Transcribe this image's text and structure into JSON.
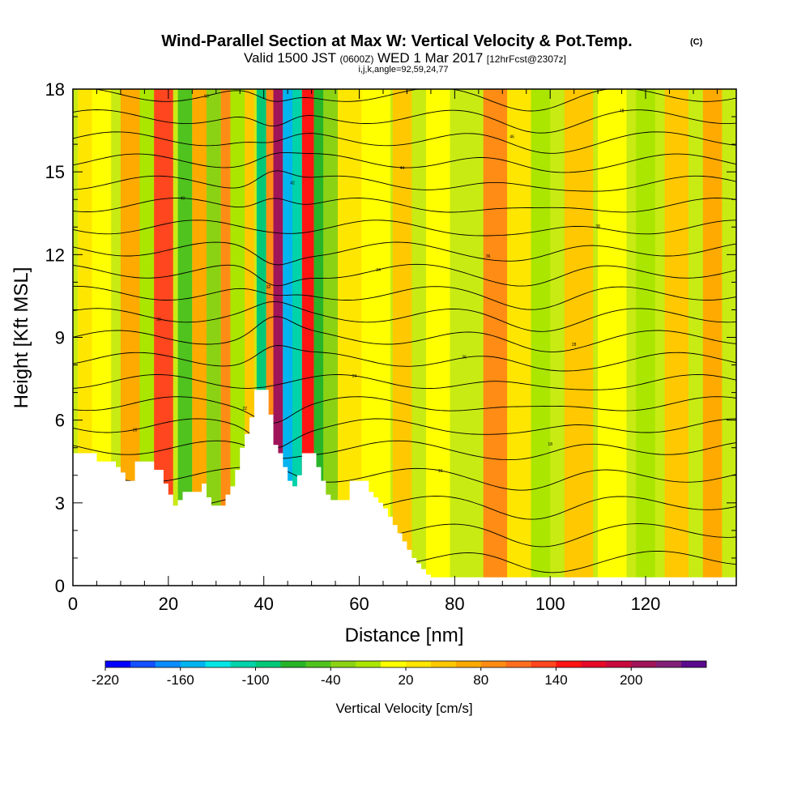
{
  "chart_data": {
    "type": "heatmap",
    "title": "Wind-Parallel Section at Max W: Vertical Velocity & Pot.Temp.",
    "copyright_mark": "(C)",
    "subtitle_main": "Valid 1500 JST",
    "subtitle_utc": "(0600Z)",
    "subtitle_date": "WED 1 Mar 2017",
    "subtitle_fcst": "[12hrFcst@2307z]",
    "subtitle_indices": "i,j,k,angle=92,59,24,77",
    "xlabel": "Distance [nm]",
    "ylabel": "Height [Kft MSL]",
    "xlim": [
      0,
      139
    ],
    "ylim": [
      0,
      18
    ],
    "x_ticks": [
      0,
      20,
      40,
      60,
      80,
      100,
      120
    ],
    "y_ticks": [
      0,
      3,
      6,
      9,
      12,
      15,
      18
    ],
    "colorbar": {
      "label": "Vertical Velocity [cm/s]",
      "levels": [
        -220,
        -200,
        -180,
        -160,
        -140,
        -120,
        -100,
        -80,
        -60,
        -40,
        -20,
        0,
        20,
        40,
        60,
        80,
        100,
        120,
        140,
        160,
        180,
        200,
        220,
        240
      ],
      "labeled_ticks": [
        -220,
        -160,
        -100,
        -40,
        20,
        80,
        140,
        200
      ],
      "colors": [
        "#0000ff",
        "#1450ff",
        "#0a8cff",
        "#00b4f0",
        "#00e6e6",
        "#00d2aa",
        "#00c878",
        "#28b428",
        "#50c31e",
        "#8cd214",
        "#aae600",
        "#ffff00",
        "#ffe600",
        "#ffc800",
        "#ffaa00",
        "#ff8c14",
        "#ff6e1e",
        "#ff461e",
        "#ff1414",
        "#e60a28",
        "#c80a3c",
        "#a0145a",
        "#821e78",
        "#5a0a8c"
      ]
    },
    "vertical_velocity_bands": [
      {
        "x": 1,
        "w": 6,
        "value": 20
      },
      {
        "x": 4,
        "w": 4,
        "value": 0
      },
      {
        "x": 10,
        "w": 4,
        "value": 60
      },
      {
        "x": 14,
        "w": 3,
        "value": -20
      },
      {
        "x": 17,
        "w": 4,
        "value": 120
      },
      {
        "x": 22,
        "w": 3,
        "value": -60
      },
      {
        "x": 25,
        "w": 3,
        "value": 60
      },
      {
        "x": 28,
        "w": 3,
        "value": -40
      },
      {
        "x": 31,
        "w": 2,
        "value": 80
      },
      {
        "x": 33,
        "w": 3,
        "value": -20
      },
      {
        "x": 36,
        "w": 2,
        "value": 40
      },
      {
        "x": 38.5,
        "w": 2,
        "value": -100
      },
      {
        "x": 40.5,
        "w": 1.5,
        "value": 80
      },
      {
        "x": 42,
        "w": 2,
        "value": 200
      },
      {
        "x": 44,
        "w": 2,
        "value": -160
      },
      {
        "x": 46,
        "w": 2,
        "value": -120
      },
      {
        "x": 48,
        "w": 2.5,
        "value": 140
      },
      {
        "x": 50.5,
        "w": 2,
        "value": -80
      },
      {
        "x": 52.5,
        "w": 3,
        "value": -40
      },
      {
        "x": 55.5,
        "w": 5,
        "value": 20
      },
      {
        "x": 60.5,
        "w": 6,
        "value": 0
      },
      {
        "x": 67,
        "w": 4,
        "value": 40
      },
      {
        "x": 74,
        "w": 5,
        "value": 0
      },
      {
        "x": 86,
        "w": 5,
        "value": 80
      },
      {
        "x": 91,
        "w": 5,
        "value": 20
      },
      {
        "x": 96,
        "w": 4,
        "value": -20
      },
      {
        "x": 103,
        "w": 6,
        "value": 40
      },
      {
        "x": 110,
        "w": 6,
        "value": 0
      },
      {
        "x": 118,
        "w": 4,
        "value": -20
      },
      {
        "x": 124,
        "w": 5,
        "value": 40
      },
      {
        "x": 132,
        "w": 4,
        "value": 60
      }
    ],
    "terrain_height": [
      [
        0,
        4.8
      ],
      [
        4,
        4.8
      ],
      [
        5,
        4.5
      ],
      [
        8,
        4.5
      ],
      [
        9,
        4.3
      ],
      [
        10,
        4.1
      ],
      [
        11,
        3.8
      ],
      [
        12,
        3.8
      ],
      [
        13,
        4.5
      ],
      [
        16,
        4.5
      ],
      [
        17,
        4.2
      ],
      [
        18,
        4.2
      ],
      [
        19,
        3.7
      ],
      [
        20,
        3.3
      ],
      [
        21,
        2.9
      ],
      [
        22,
        3.1
      ],
      [
        23,
        3.4
      ],
      [
        26,
        3.4
      ],
      [
        27,
        3.7
      ],
      [
        28,
        3.2
      ],
      [
        29,
        2.9
      ],
      [
        31,
        2.9
      ],
      [
        32,
        3.3
      ],
      [
        33,
        3.6
      ],
      [
        34,
        4.2
      ],
      [
        35,
        5.0
      ],
      [
        36,
        5.5
      ],
      [
        37,
        6.1
      ],
      [
        38,
        7.1
      ],
      [
        40,
        7.1
      ],
      [
        41,
        6.2
      ],
      [
        42,
        5.1
      ],
      [
        43,
        4.8
      ],
      [
        44,
        4.3
      ],
      [
        45,
        3.8
      ],
      [
        46,
        3.6
      ],
      [
        47,
        4.0
      ],
      [
        48,
        4.8
      ],
      [
        50,
        4.8
      ],
      [
        51,
        4.3
      ],
      [
        52,
        3.8
      ],
      [
        53,
        3.3
      ],
      [
        54,
        3.1
      ],
      [
        57,
        3.1
      ],
      [
        58,
        3.8
      ],
      [
        61,
        3.8
      ],
      [
        62,
        3.4
      ],
      [
        63,
        3.2
      ],
      [
        64,
        3.0
      ],
      [
        65,
        2.8
      ],
      [
        66,
        2.5
      ],
      [
        67,
        2.2
      ],
      [
        68,
        1.9
      ],
      [
        69,
        1.6
      ],
      [
        70,
        1.3
      ],
      [
        71,
        1.0
      ],
      [
        72,
        0.8
      ],
      [
        73,
        0.6
      ],
      [
        74,
        0.4
      ],
      [
        75,
        0.3
      ],
      [
        139,
        0.3
      ]
    ],
    "theta_contours": [
      {
        "y0": 1.0,
        "label": "10"
      },
      {
        "y0": 2.0,
        "label": "12"
      },
      {
        "y0": 3.0,
        "label": "14"
      },
      {
        "y0": 4.0,
        "label": "16"
      },
      {
        "y0": 5.0,
        "label": "18"
      },
      {
        "y0": 5.8,
        "label": "20"
      },
      {
        "y0": 6.6,
        "label": "22"
      },
      {
        "y0": 7.4,
        "label": "24"
      },
      {
        "y0": 8.2,
        "label": "26"
      },
      {
        "y0": 9.0,
        "label": "28"
      },
      {
        "y0": 9.8,
        "label": "30"
      },
      {
        "y0": 10.6,
        "label": "32"
      },
      {
        "y0": 11.4,
        "label": "34"
      },
      {
        "y0": 12.2,
        "label": "36"
      },
      {
        "y0": 13.0,
        "label": "38"
      },
      {
        "y0": 13.8,
        "label": "40"
      },
      {
        "y0": 14.6,
        "label": "42"
      },
      {
        "y0": 15.4,
        "label": "44"
      },
      {
        "y0": 16.2,
        "label": "46"
      },
      {
        "y0": 17.0,
        "label": "48"
      },
      {
        "y0": 17.8,
        "label": "50"
      }
    ]
  }
}
